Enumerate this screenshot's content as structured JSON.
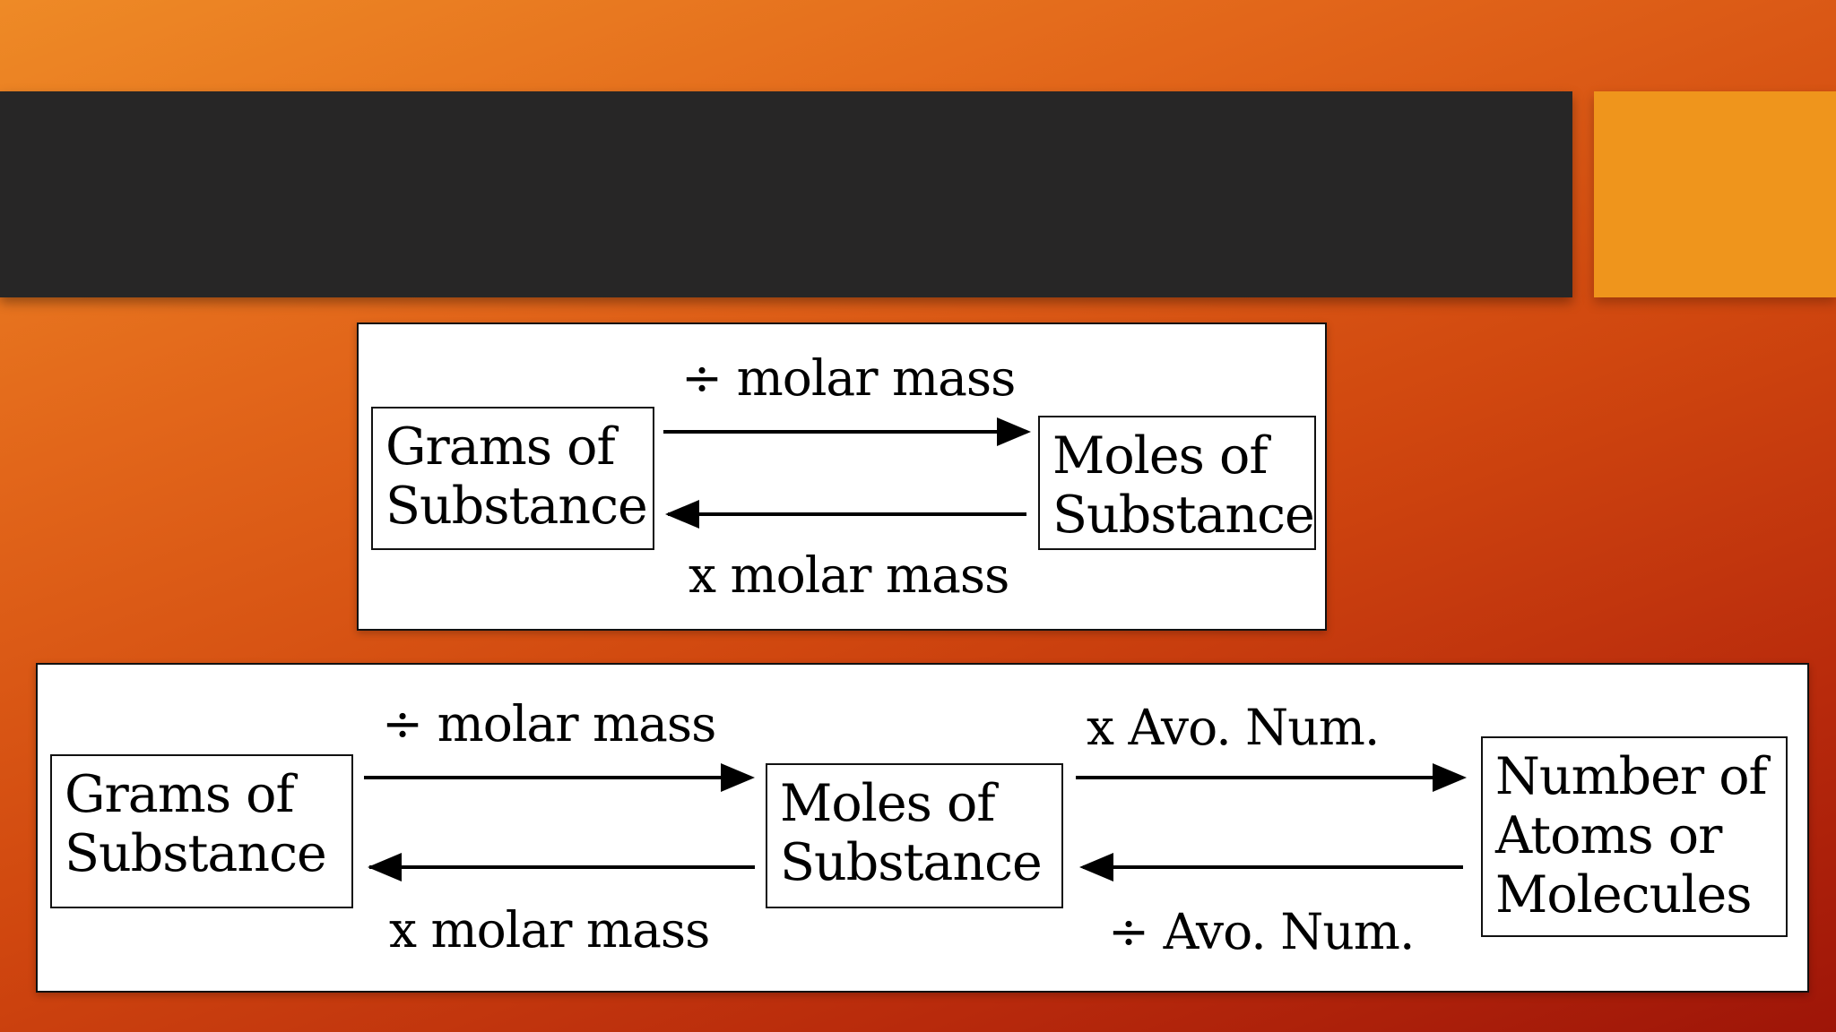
{
  "top_diagram": {
    "box_left": [
      "Grams of",
      "Substance"
    ],
    "box_right": [
      "Moles of",
      "Substance"
    ],
    "label_forward": "÷ molar mass",
    "label_backward": "x  molar mass"
  },
  "bottom_diagram": {
    "box_grams": [
      "Grams of",
      "Substance"
    ],
    "box_moles": [
      "Moles of",
      "Substance"
    ],
    "box_number": [
      "Number of",
      "Atoms or",
      "Molecules"
    ],
    "label_grams_to_moles": "÷  molar mass",
    "label_moles_to_grams": "x  molar mass",
    "label_moles_to_number": "x  Avo. Num.",
    "label_number_to_moles": "÷ Avo. Num."
  },
  "colors": {
    "title_bar": "#272626",
    "accent": "#ef951c",
    "background_start": "#ee8a26",
    "background_end": "#9e1508"
  }
}
